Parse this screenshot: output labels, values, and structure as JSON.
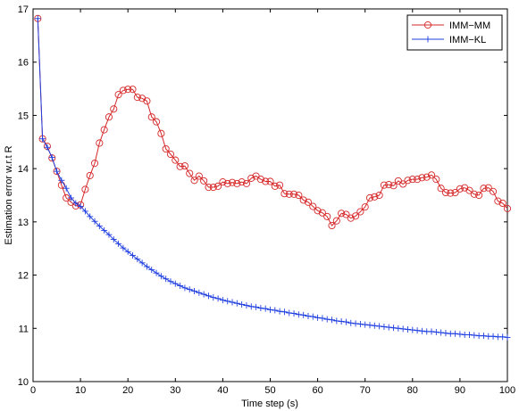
{
  "chart_data": {
    "type": "line",
    "title": "",
    "xlabel": "Time step (s)",
    "ylabel": "Estimation error w.r.t R",
    "xlim": [
      0,
      100
    ],
    "ylim": [
      10,
      17
    ],
    "xticks": [
      "0",
      "10",
      "20",
      "30",
      "40",
      "50",
      "60",
      "70",
      "80",
      "90",
      "100"
    ],
    "yticks": [
      "10",
      "11",
      "12",
      "13",
      "14",
      "15",
      "16",
      "17"
    ],
    "grid": false,
    "legend_position": "top-right",
    "series": [
      {
        "name": "IMM−MM",
        "color": "#d62728",
        "marker": "circle",
        "x": [
          1,
          2,
          3,
          4,
          5,
          6,
          7,
          8,
          9,
          10,
          11,
          12,
          13,
          14,
          15,
          16,
          17,
          18,
          19,
          20,
          21,
          22,
          23,
          24,
          25,
          26,
          27,
          28,
          29,
          30,
          31,
          32,
          33,
          34,
          35,
          36,
          37,
          38,
          39,
          40,
          41,
          42,
          43,
          44,
          45,
          46,
          47,
          48,
          49,
          50,
          51,
          52,
          53,
          54,
          55,
          56,
          57,
          58,
          59,
          60,
          61,
          62,
          63,
          64,
          65,
          66,
          67,
          68,
          69,
          70,
          71,
          72,
          73,
          74,
          75,
          76,
          77,
          78,
          79,
          80,
          81,
          82,
          83,
          84,
          85,
          86,
          87,
          88,
          89,
          90,
          91,
          92,
          93,
          94,
          95,
          96,
          97,
          98,
          99,
          100
        ],
        "values": [
          16.82,
          14.56,
          14.42,
          14.2,
          13.95,
          13.69,
          13.45,
          13.37,
          13.3,
          13.32,
          13.61,
          13.87,
          14.1,
          14.48,
          14.73,
          14.97,
          15.12,
          15.39,
          15.47,
          15.49,
          15.49,
          15.34,
          15.32,
          15.27,
          14.97,
          14.88,
          14.66,
          14.37,
          14.27,
          14.16,
          14.04,
          14.05,
          13.91,
          13.78,
          13.86,
          13.77,
          13.65,
          13.65,
          13.67,
          13.75,
          13.72,
          13.74,
          13.72,
          13.75,
          13.72,
          13.82,
          13.86,
          13.8,
          13.76,
          13.76,
          13.67,
          13.69,
          13.53,
          13.52,
          13.52,
          13.5,
          13.41,
          13.37,
          13.29,
          13.21,
          13.17,
          13.1,
          12.93,
          13.02,
          13.16,
          13.14,
          13.07,
          13.11,
          13.19,
          13.28,
          13.45,
          13.47,
          13.5,
          13.69,
          13.7,
          13.68,
          13.77,
          13.71,
          13.78,
          13.8,
          13.8,
          13.83,
          13.84,
          13.88,
          13.8,
          13.63,
          13.55,
          13.54,
          13.55,
          13.62,
          13.64,
          13.59,
          13.52,
          13.5,
          13.63,
          13.64,
          13.57,
          13.39,
          13.35,
          13.25
        ]
      },
      {
        "name": "IMM−KL",
        "color": "#1f3fe0",
        "marker": "plus",
        "x": [
          1,
          2,
          3,
          4,
          5,
          6,
          7,
          8,
          9,
          10,
          11,
          12,
          13,
          14,
          15,
          16,
          17,
          18,
          19,
          20,
          21,
          22,
          23,
          24,
          25,
          26,
          27,
          28,
          29,
          30,
          31,
          32,
          33,
          34,
          35,
          36,
          37,
          38,
          39,
          40,
          41,
          42,
          43,
          44,
          45,
          46,
          47,
          48,
          49,
          50,
          51,
          52,
          53,
          54,
          55,
          56,
          57,
          58,
          59,
          60,
          61,
          62,
          63,
          64,
          65,
          66,
          67,
          68,
          69,
          70,
          71,
          72,
          73,
          74,
          75,
          76,
          77,
          78,
          79,
          80,
          81,
          82,
          83,
          84,
          85,
          86,
          87,
          88,
          89,
          90,
          91,
          92,
          93,
          94,
          95,
          96,
          97,
          98,
          99,
          100
        ],
        "values": [
          16.82,
          14.56,
          14.4,
          14.21,
          13.95,
          13.78,
          13.63,
          13.45,
          13.35,
          13.29,
          13.2,
          13.1,
          13.01,
          12.92,
          12.84,
          12.76,
          12.67,
          12.59,
          12.51,
          12.44,
          12.37,
          12.3,
          12.23,
          12.16,
          12.1,
          12.04,
          11.98,
          11.93,
          11.88,
          11.84,
          11.8,
          11.76,
          11.73,
          11.7,
          11.67,
          11.64,
          11.61,
          11.58,
          11.56,
          11.53,
          11.51,
          11.49,
          11.47,
          11.45,
          11.43,
          11.41,
          11.4,
          11.38,
          11.37,
          11.35,
          11.34,
          11.32,
          11.31,
          11.29,
          11.28,
          11.26,
          11.25,
          11.23,
          11.22,
          11.2,
          11.19,
          11.17,
          11.16,
          11.14,
          11.13,
          11.12,
          11.1,
          11.09,
          11.08,
          11.07,
          11.06,
          11.05,
          11.04,
          11.03,
          11.02,
          11.01,
          11.0,
          10.99,
          10.98,
          10.97,
          10.96,
          10.95,
          10.94,
          10.94,
          10.93,
          10.92,
          10.91,
          10.9,
          10.9,
          10.89,
          10.88,
          10.88,
          10.87,
          10.86,
          10.86,
          10.85,
          10.85,
          10.84,
          10.84,
          10.83
        ]
      }
    ]
  }
}
